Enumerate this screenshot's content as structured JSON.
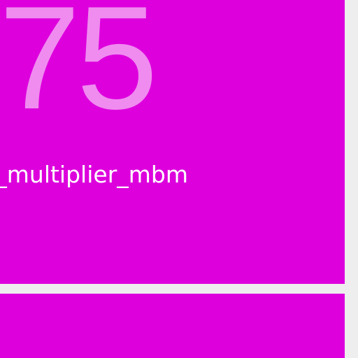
{
  "colors": {
    "background": "#eeeeee",
    "tile": "#dd00dd",
    "value_text": "#f08cf0",
    "label_text": "#ffffff"
  },
  "tiles": [
    {
      "value": "75",
      "label": "_multiplier_mbm"
    },
    {
      "value": "",
      "label": ""
    }
  ]
}
